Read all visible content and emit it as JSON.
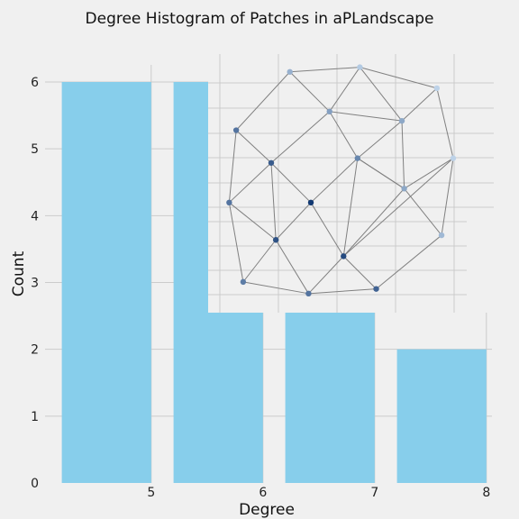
{
  "chart_data": {
    "type": "bar",
    "title": "Degree Histogram of Patches in aPLandscape",
    "xlabel": "Degree",
    "ylabel": "Count",
    "x_ticks": [
      "5",
      "6",
      "7",
      "8"
    ],
    "y_ticks": [
      "0",
      "1",
      "2",
      "3",
      "4",
      "5",
      "6"
    ],
    "xlim": [
      4.05,
      8.05
    ],
    "ylim": [
      0,
      6.3
    ],
    "grid": true,
    "bars": [
      {
        "degree": 4.6,
        "count": 6
      },
      {
        "degree": 5.6,
        "count": 6
      },
      {
        "degree": 6.6,
        "count": 3
      },
      {
        "degree": 7.6,
        "count": 2
      }
    ],
    "bar_width": 0.8,
    "colors": {
      "bar": "#87ceeb",
      "background": "#f0f0f0",
      "grid": "#cbcbcb",
      "edge": "#808080"
    },
    "inset_network": {
      "description_free": true,
      "nodes": [
        {
          "id": 0,
          "x": 0.3,
          "y": 0.97,
          "shade": 0.25
        },
        {
          "id": 1,
          "x": 0.6,
          "y": 0.99,
          "shade": 0.1
        },
        {
          "id": 2,
          "x": 0.93,
          "y": 0.9,
          "shade": 0.05
        },
        {
          "id": 3,
          "x": 0.07,
          "y": 0.72,
          "shade": 0.6
        },
        {
          "id": 4,
          "x": 0.47,
          "y": 0.8,
          "shade": 0.35
        },
        {
          "id": 5,
          "x": 0.78,
          "y": 0.76,
          "shade": 0.3
        },
        {
          "id": 6,
          "x": 0.22,
          "y": 0.58,
          "shade": 0.75
        },
        {
          "id": 7,
          "x": 0.59,
          "y": 0.6,
          "shade": 0.5
        },
        {
          "id": 8,
          "x": 1.0,
          "y": 0.6,
          "shade": 0.05
        },
        {
          "id": 9,
          "x": 0.04,
          "y": 0.41,
          "shade": 0.6
        },
        {
          "id": 10,
          "x": 0.39,
          "y": 0.41,
          "shade": 0.95
        },
        {
          "id": 11,
          "x": 0.79,
          "y": 0.47,
          "shade": 0.3
        },
        {
          "id": 12,
          "x": 0.24,
          "y": 0.25,
          "shade": 0.8
        },
        {
          "id": 13,
          "x": 0.53,
          "y": 0.18,
          "shade": 0.85
        },
        {
          "id": 14,
          "x": 0.95,
          "y": 0.27,
          "shade": 0.2
        },
        {
          "id": 15,
          "x": 0.1,
          "y": 0.07,
          "shade": 0.55
        },
        {
          "id": 16,
          "x": 0.38,
          "y": 0.02,
          "shade": 0.6
        },
        {
          "id": 17,
          "x": 0.67,
          "y": 0.04,
          "shade": 0.7
        }
      ],
      "edges": [
        [
          0,
          1
        ],
        [
          1,
          2
        ],
        [
          0,
          4
        ],
        [
          1,
          4
        ],
        [
          1,
          5
        ],
        [
          2,
          5
        ],
        [
          2,
          8
        ],
        [
          0,
          3
        ],
        [
          3,
          9
        ],
        [
          3,
          6
        ],
        [
          4,
          6
        ],
        [
          4,
          5
        ],
        [
          4,
          7
        ],
        [
          5,
          7
        ],
        [
          5,
          11
        ],
        [
          8,
          11
        ],
        [
          8,
          14
        ],
        [
          8,
          13
        ],
        [
          6,
          9
        ],
        [
          6,
          12
        ],
        [
          6,
          10
        ],
        [
          7,
          10
        ],
        [
          7,
          13
        ],
        [
          7,
          11
        ],
        [
          9,
          12
        ],
        [
          9,
          15
        ],
        [
          10,
          12
        ],
        [
          10,
          13
        ],
        [
          11,
          14
        ],
        [
          11,
          13
        ],
        [
          12,
          15
        ],
        [
          12,
          16
        ],
        [
          13,
          16
        ],
        [
          13,
          17
        ],
        [
          15,
          16
        ],
        [
          16,
          17
        ],
        [
          14,
          17
        ],
        [
          11,
          7
        ]
      ]
    }
  }
}
